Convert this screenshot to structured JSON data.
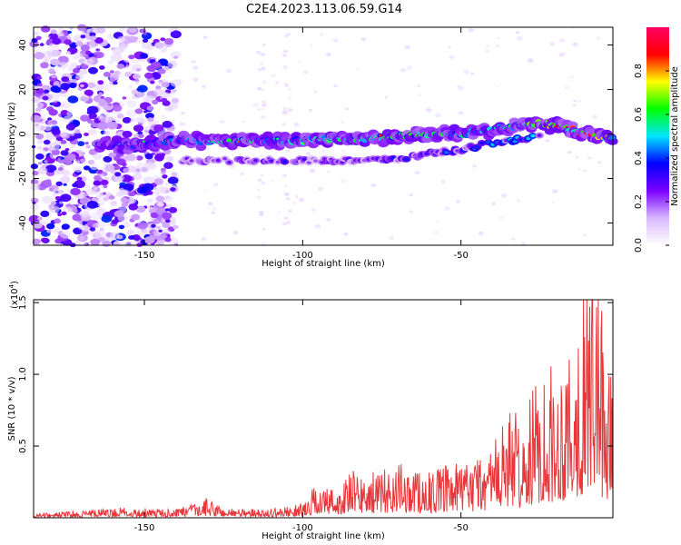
{
  "title": "C2E4.2023.113.06.59.G14",
  "chart_data": [
    {
      "type": "heatmap",
      "xlabel": "Height of straight line (km)",
      "ylabel": "Frequency (Hz)",
      "xlim": [
        -185,
        -2
      ],
      "ylim": [
        -50,
        48
      ],
      "xticks": [
        -150,
        -100,
        -50
      ],
      "yticks": [
        40,
        20,
        0,
        -20,
        -40
      ],
      "colorbar": {
        "label": "Normalized spectral amplitude",
        "range": [
          0.0,
          1.0
        ],
        "ticks": [
          "0.0",
          "0.2",
          "0.4",
          "0.6",
          "0.8"
        ],
        "tick_values": [
          0.0,
          0.2,
          0.4,
          0.6,
          0.8
        ],
        "colormap": [
          "#ffffff",
          "#d9b8ff",
          "#7a00ff",
          "#0000ff",
          "#00e5ff",
          "#00ff00",
          "#ffff00",
          "#ff0000",
          "#ff0066"
        ]
      },
      "main_trace": {
        "x": [
          -165,
          -155,
          -142,
          -130,
          -120,
          -110,
          -100,
          -90,
          -80,
          -70,
          -60,
          -50,
          -40,
          -30,
          -25,
          -20,
          -15,
          -10,
          -5,
          -2
        ],
        "freq": [
          -5,
          -5,
          -3,
          -3,
          -3,
          -3,
          -3,
          -2,
          -2,
          -1,
          0,
          0,
          2,
          4,
          5,
          4,
          2,
          0,
          -1,
          -2
        ],
        "amplitude": [
          0.35,
          0.35,
          0.45,
          0.55,
          0.6,
          0.55,
          0.5,
          0.55,
          0.6,
          0.65,
          0.6,
          0.55,
          0.5,
          0.6,
          0.7,
          0.8,
          0.9,
          0.95,
          0.85,
          0.7
        ]
      },
      "secondary_trace": {
        "x": [
          -140,
          -120,
          -110,
          -100,
          -90,
          -80,
          -70,
          -60,
          -50,
          -40,
          -30,
          -25
        ],
        "freq": [
          -12,
          -12,
          -12,
          -12,
          -12,
          -12,
          -11,
          -9,
          -7,
          -4,
          -2,
          0
        ],
        "amplitude": [
          0.3,
          0.3,
          0.35,
          0.35,
          0.3,
          0.35,
          0.35,
          0.4,
          0.45,
          0.45,
          0.5,
          0.5
        ]
      }
    },
    {
      "type": "line",
      "xlabel": "Height of straight line (km)",
      "ylabel": "SNR (10 * v/v)",
      "y_multiplier": "(x10",
      "y_multiplier_exp": "4",
      "y_multiplier_close": ")",
      "xlim": [
        -185,
        -2
      ],
      "ylim": [
        0,
        1.52
      ],
      "xticks": [
        -150,
        -100,
        -50
      ],
      "yticks": [
        0.5,
        1.0,
        1.5
      ],
      "ytick_labels": [
        "0.5",
        "1.0",
        "1.5"
      ],
      "color": "#e8373a",
      "series": [
        {
          "x": [
            -185,
            -175,
            -165,
            -155,
            -145,
            -135,
            -130,
            -125,
            -115,
            -105,
            -100,
            -95,
            -92,
            -88,
            -85,
            -80,
            -75,
            -70,
            -65,
            -60,
            -55,
            -50,
            -45,
            -40,
            -35,
            -30,
            -27,
            -24,
            -20,
            -17,
            -14,
            -11,
            -8,
            -5,
            -2
          ],
          "y": [
            0.02,
            0.03,
            0.04,
            0.05,
            0.04,
            0.06,
            0.09,
            0.05,
            0.04,
            0.05,
            0.07,
            0.18,
            0.14,
            0.15,
            0.22,
            0.21,
            0.22,
            0.26,
            0.24,
            0.22,
            0.24,
            0.26,
            0.3,
            0.36,
            0.52,
            0.45,
            0.62,
            0.75,
            0.7,
            0.82,
            0.95,
            1.08,
            1.52,
            0.85,
            0.8
          ]
        }
      ]
    }
  ]
}
